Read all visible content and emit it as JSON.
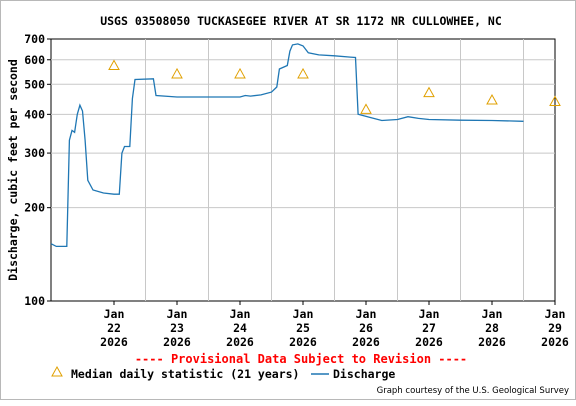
{
  "chart_data": {
    "type": "line",
    "title": "USGS 03508050 TUCKASEGEE RIVER AT SR 1172 NR CULLOWHEE, NC",
    "ylabel": "Discharge, cubic feet per second",
    "xlabel": "",
    "y_scale": "log",
    "ylim": [
      100,
      700
    ],
    "y_ticks": [
      100,
      200,
      300,
      400,
      500,
      600,
      700
    ],
    "y_tick_labels": [
      "100",
      "200",
      "300",
      "400",
      "500",
      "600",
      "700"
    ],
    "xlim": [
      "2026-01-21T12:00",
      "2026-01-29T12:00"
    ],
    "x_ticks": [
      {
        "value": "2026-01-22T00:00",
        "line1": "Jan",
        "line2": "22",
        "line3": "2026"
      },
      {
        "value": "2026-01-23T00:00",
        "line1": "Jan",
        "line2": "23",
        "line3": "2026"
      },
      {
        "value": "2026-01-24T00:00",
        "line1": "Jan",
        "line2": "24",
        "line3": "2026"
      },
      {
        "value": "2026-01-25T00:00",
        "line1": "Jan",
        "line2": "25",
        "line3": "2026"
      },
      {
        "value": "2026-01-26T00:00",
        "line1": "Jan",
        "line2": "26",
        "line3": "2026"
      },
      {
        "value": "2026-01-27T00:00",
        "line1": "Jan",
        "line2": "27",
        "line3": "2026"
      },
      {
        "value": "2026-01-28T00:00",
        "line1": "Jan",
        "line2": "28",
        "line3": "2026"
      },
      {
        "value": "2026-01-29T00:00",
        "line1": "Jan",
        "line2": "29",
        "line3": "2026"
      }
    ],
    "grid": true,
    "series": [
      {
        "name": "Discharge",
        "color": "#1f77b4",
        "points": [
          [
            "2026-01-21T12:00",
            153
          ],
          [
            "2026-01-21T14:00",
            150
          ],
          [
            "2026-01-21T18:00",
            150
          ],
          [
            "2026-01-21T19:00",
            330
          ],
          [
            "2026-01-21T20:00",
            355
          ],
          [
            "2026-01-21T21:00",
            350
          ],
          [
            "2026-01-21T22:00",
            400
          ],
          [
            "2026-01-21T23:00",
            428
          ],
          [
            "2026-01-22T00:00",
            410
          ],
          [
            "2026-01-22T01:00",
            330
          ],
          [
            "2026-01-22T02:00",
            245
          ],
          [
            "2026-01-22T04:00",
            228
          ],
          [
            "2026-01-22T08:00",
            223
          ],
          [
            "2026-01-22T12:00",
            221
          ],
          [
            "2026-01-22T14:00",
            221
          ],
          [
            "2026-01-22T15:00",
            300
          ],
          [
            "2026-01-22T16:00",
            315
          ],
          [
            "2026-01-22T18:00",
            315
          ],
          [
            "2026-01-22T19:00",
            450
          ],
          [
            "2026-01-22T20:00",
            518
          ],
          [
            "2026-01-23T03:00",
            521
          ],
          [
            "2026-01-23T04:00",
            460
          ],
          [
            "2026-01-23T12:00",
            455
          ],
          [
            "2026-01-24T00:00",
            455
          ],
          [
            "2026-01-24T12:00",
            455
          ],
          [
            "2026-01-24T14:00",
            460
          ],
          [
            "2026-01-24T16:00",
            458
          ],
          [
            "2026-01-24T20:00",
            462
          ],
          [
            "2026-01-25T00:00",
            472
          ],
          [
            "2026-01-25T02:00",
            490
          ],
          [
            "2026-01-25T03:00",
            560
          ],
          [
            "2026-01-25T06:00",
            575
          ],
          [
            "2026-01-25T07:00",
            640
          ],
          [
            "2026-01-25T08:00",
            670
          ],
          [
            "2026-01-25T10:00",
            675
          ],
          [
            "2026-01-25T12:00",
            665
          ],
          [
            "2026-01-25T14:00",
            632
          ],
          [
            "2026-01-25T18:00",
            622
          ],
          [
            "2026-01-26T00:00",
            618
          ],
          [
            "2026-01-26T06:00",
            612
          ],
          [
            "2026-01-26T08:00",
            610
          ],
          [
            "2026-01-26T09:00",
            400
          ],
          [
            "2026-01-26T14:00",
            390
          ],
          [
            "2026-01-26T18:00",
            382
          ],
          [
            "2026-01-27T00:00",
            385
          ],
          [
            "2026-01-27T04:00",
            393
          ],
          [
            "2026-01-27T08:00",
            388
          ],
          [
            "2026-01-27T12:00",
            385
          ],
          [
            "2026-01-28T00:00",
            383
          ],
          [
            "2026-01-28T12:00",
            382
          ],
          [
            "2026-01-29T00:00",
            380
          ]
        ]
      },
      {
        "name": "Median daily statistic (21 years)",
        "color": "#e0a000",
        "marker": "triangle",
        "points": [
          [
            "2026-01-22T00:00",
            575
          ],
          [
            "2026-01-23T00:00",
            540
          ],
          [
            "2026-01-24T00:00",
            540
          ],
          [
            "2026-01-25T00:00",
            540
          ],
          [
            "2026-01-26T00:00",
            415
          ],
          [
            "2026-01-27T00:00",
            470
          ],
          [
            "2026-01-28T00:00",
            445
          ],
          [
            "2026-01-29T00:00",
            440
          ]
        ]
      }
    ]
  },
  "provisional_text": "---- Provisional Data Subject to Revision ----",
  "legend": {
    "median_label": "Median daily statistic (21 years)",
    "discharge_label": "Discharge"
  },
  "credit": "Graph courtesy of the U.S. Geological Survey"
}
